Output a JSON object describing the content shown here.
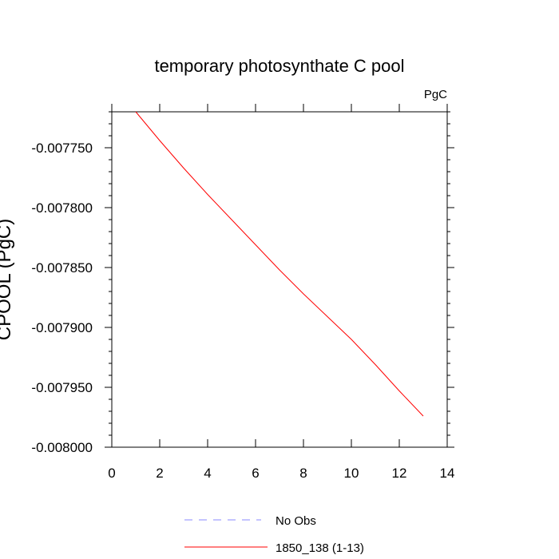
{
  "chart_data": {
    "type": "line",
    "title": "temporary photosynthate C pool",
    "units": "PgC",
    "xlabel": "",
    "ylabel": "CPOOL (PgC)",
    "xlim": [
      0,
      14
    ],
    "ylim": [
      -0.008,
      -0.00772
    ],
    "x_ticks": [
      0,
      2,
      4,
      6,
      8,
      10,
      12,
      14
    ],
    "x_tick_labels": [
      "0",
      "2",
      "4",
      "6",
      "8",
      "10",
      "12",
      "14"
    ],
    "y_ticks": [
      -0.00775,
      -0.0078,
      -0.00785,
      -0.0079,
      -0.00795,
      -0.008
    ],
    "y_tick_labels": [
      "-0.007750",
      "-0.007800",
      "-0.007850",
      "-0.007900",
      "-0.007950",
      "-0.008000"
    ],
    "grid": false,
    "legend_position": "bottom",
    "series": [
      {
        "name": "1850_138 (1-13)",
        "color": "#ff0000",
        "dash": "solid",
        "x": [
          1,
          2,
          3,
          4,
          5,
          6,
          7,
          8,
          9,
          10,
          11,
          12,
          13
        ],
        "y": [
          -0.00772,
          -0.007744,
          -0.007767,
          -0.007789,
          -0.00781,
          -0.007831,
          -0.007852,
          -0.007872,
          -0.007891,
          -0.00791,
          -0.007931,
          -0.007953,
          -0.007974
        ]
      }
    ],
    "legend": [
      {
        "label": "No Obs",
        "color": "#8888ff",
        "dash": "dashed"
      },
      {
        "label": "1850_138 (1-13)",
        "color": "#ff0000",
        "dash": "solid"
      }
    ]
  }
}
